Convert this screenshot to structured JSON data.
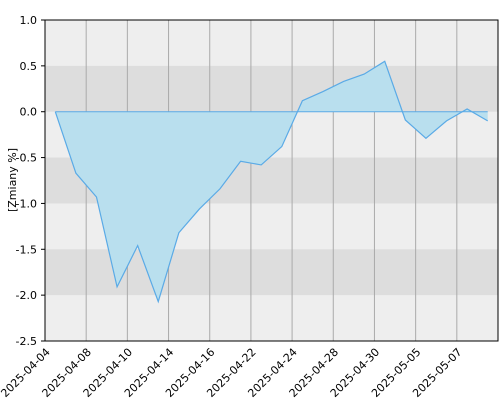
{
  "chart_data": {
    "type": "area",
    "y_label": "[Zmiany %]",
    "categories": [
      "2025-04-04",
      null,
      "2025-04-08",
      null,
      "2025-04-10",
      null,
      "2025-04-14",
      null,
      "2025-04-16",
      null,
      "2025-04-22",
      null,
      "2025-04-24",
      null,
      "2025-04-28",
      null,
      "2025-04-30",
      null,
      "2025-05-05",
      null,
      "2025-05-07",
      null
    ],
    "values": [
      0.0,
      -0.67,
      -0.93,
      -1.91,
      -1.46,
      -2.07,
      -1.32,
      -1.06,
      -0.84,
      -0.54,
      -0.58,
      -0.38,
      0.12,
      0.22,
      0.33,
      0.41,
      0.55,
      -0.09,
      -0.29,
      -0.1,
      0.03,
      -0.1
    ],
    "color": "#5aaae6",
    "fill": "#b9dfee",
    "ylim": [
      -2.5,
      1.0
    ],
    "yticks": [
      {
        "value": 1,
        "label": "1.0"
      },
      0.5,
      {
        "value": 0,
        "label": "0.0"
      },
      -0.5,
      {
        "value": -1,
        "label": "-1.0"
      },
      -1.5,
      {
        "value": -2,
        "label": "-2.0"
      },
      -2.5
    ],
    "grid": true
  }
}
